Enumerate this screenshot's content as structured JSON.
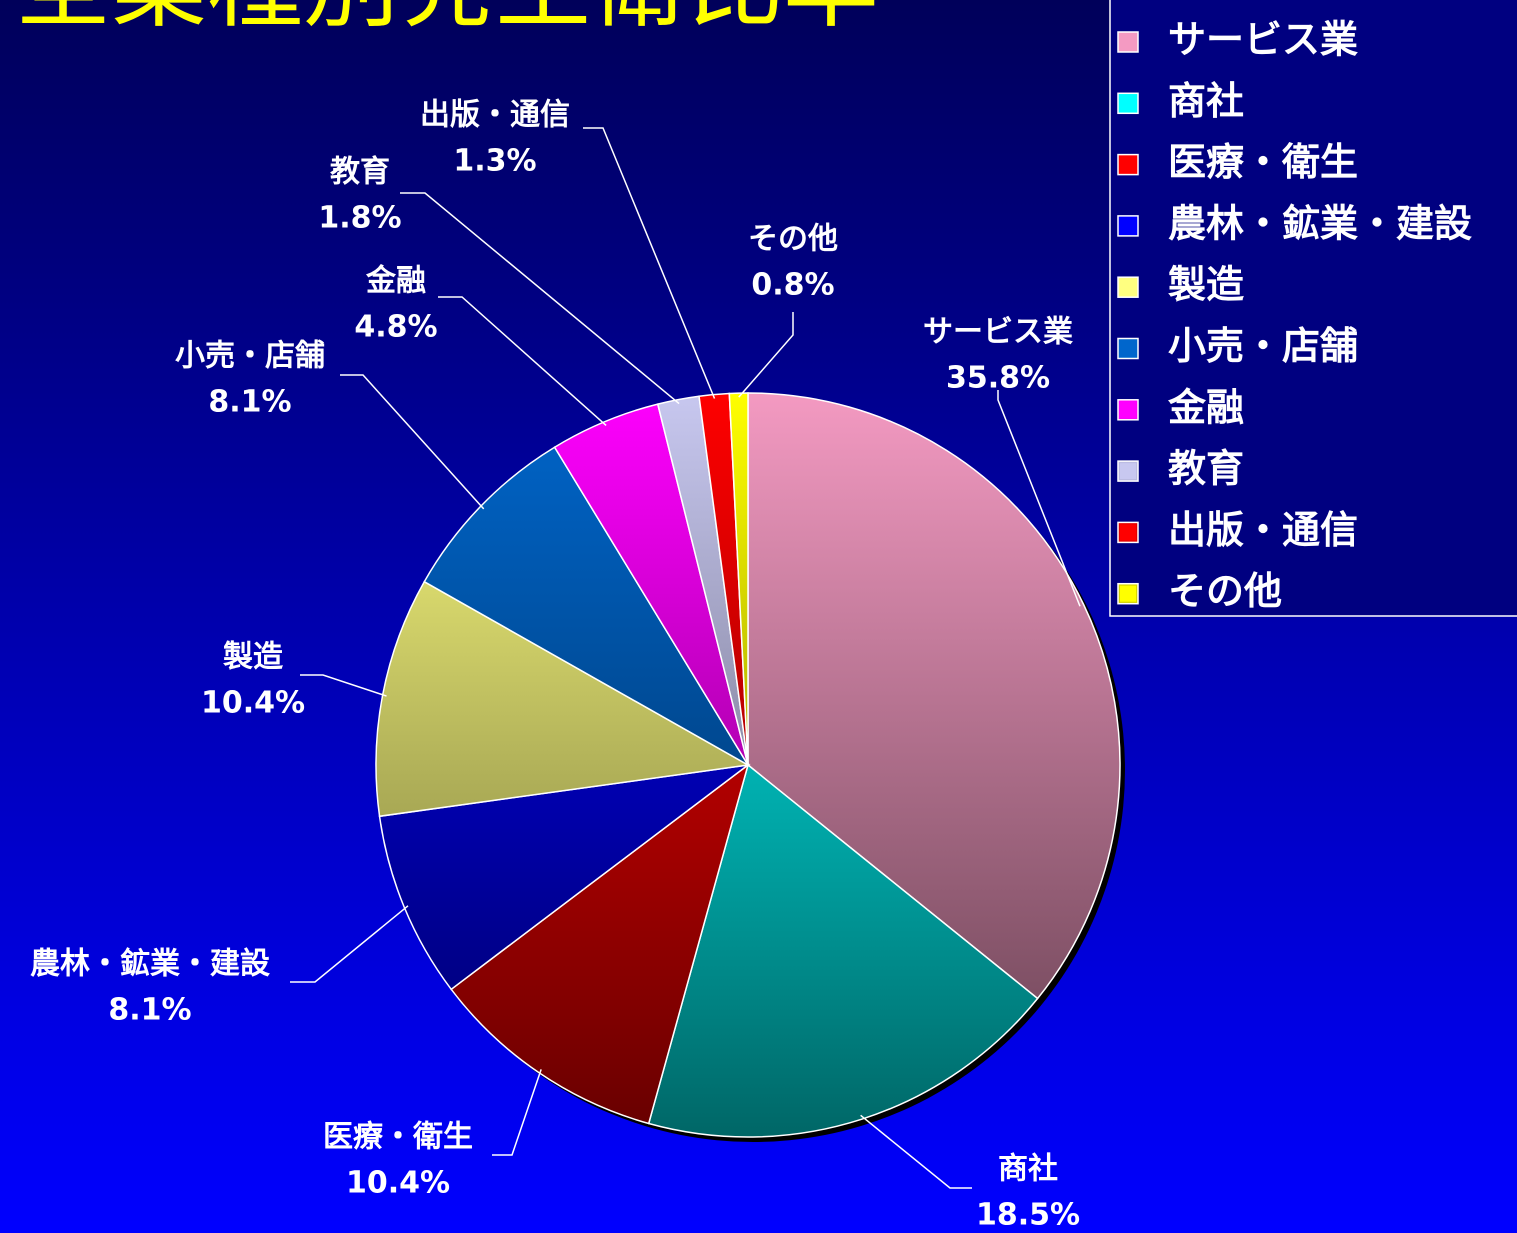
{
  "chart_data": {
    "type": "pie",
    "title": "全業種別発生衛比率",
    "categories": [
      "サービス業",
      "商社",
      "医療・衛生",
      "農林・鉱業・建設",
      "製造",
      "小売・店舗",
      "金融",
      "教育",
      "出版・通信",
      "その他"
    ],
    "values": [
      35.8,
      18.5,
      10.4,
      8.1,
      10.4,
      8.1,
      4.8,
      1.8,
      1.3,
      0.8
    ],
    "value_labels": [
      "35.8%",
      "18.5%",
      "10.4%",
      "8.1%",
      "10.4%",
      "8.1%",
      "4.8%",
      "1.8%",
      "1.3%",
      "0.8%"
    ],
    "colors": [
      "#f49ac2",
      "#00ffff",
      "#ff0000",
      "#0000ff",
      "#ffff80",
      "#0066cc",
      "#ff00ff",
      "#c8c8f0",
      "#ff0000",
      "#ffff00"
    ],
    "legend": "top-right"
  }
}
